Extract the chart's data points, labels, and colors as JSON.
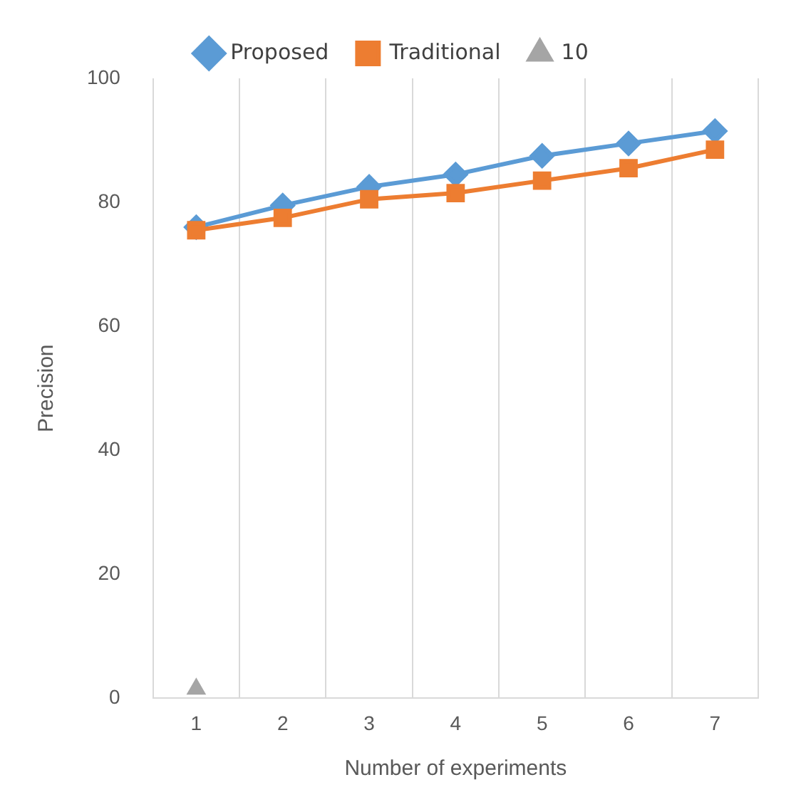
{
  "chart_data": {
    "type": "line",
    "xlabel": "Number of experiments",
    "ylabel": "Precision",
    "categories": [
      "1",
      "2",
      "3",
      "4",
      "5",
      "6",
      "7"
    ],
    "series": [
      {
        "name": "Proposed",
        "color": "#5b9bd5",
        "marker": "diamond",
        "values": [
          76,
          79.5,
          82.5,
          84.5,
          87.5,
          89.5,
          91.5
        ]
      },
      {
        "name": "Traditional",
        "color": "#ed7d31",
        "marker": "square",
        "values": [
          75.5,
          77.5,
          80.5,
          81.5,
          83.5,
          85.5,
          88.5
        ]
      },
      {
        "name": "10",
        "type": "scatter",
        "color": "#a5a5a5",
        "marker": "triangle",
        "values": [
          1.5,
          null,
          null,
          null,
          null,
          null,
          null
        ]
      }
    ],
    "ylim": [
      0,
      100
    ],
    "yticks": [
      0,
      20,
      40,
      60,
      80,
      100
    ],
    "grid": "x",
    "legend": "top"
  }
}
